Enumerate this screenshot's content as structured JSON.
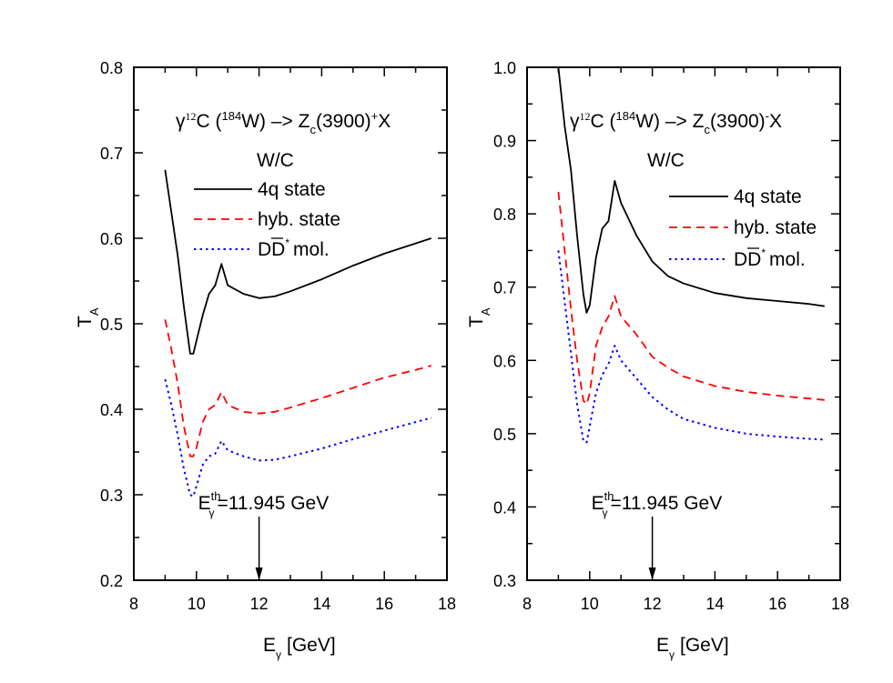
{
  "chart_data": [
    {
      "type": "line",
      "title": "γ12C (184W) -> Zc(3900)+X",
      "subtitle": "W/C",
      "xlabel": "Eγ [GeV]",
      "ylabel": "TA",
      "xlim": [
        8,
        18
      ],
      "ylim": [
        0.2,
        0.8
      ],
      "xticks": [
        "8",
        "10",
        "12",
        "14",
        "16",
        "18"
      ],
      "yticks": [
        "0.2",
        "0.3",
        "0.4",
        "0.5",
        "0.6",
        "0.7",
        "0.8"
      ],
      "annotation": {
        "text": "Eγth=11.945 GeV",
        "arrow_x": 12.0
      },
      "legend": [
        "4q state",
        "hyb. state",
        "DD̄* mol."
      ],
      "x": [
        9.0,
        9.2,
        9.4,
        9.6,
        9.8,
        9.9,
        10.0,
        10.2,
        10.4,
        10.6,
        10.8,
        11.0,
        11.5,
        12.0,
        12.5,
        13.0,
        14.0,
        15.0,
        16.0,
        17.0,
        17.5
      ],
      "series": [
        {
          "name": "4q state",
          "color": "#000000",
          "style": "solid",
          "values": [
            0.68,
            0.63,
            0.58,
            0.52,
            0.465,
            0.465,
            0.48,
            0.51,
            0.535,
            0.545,
            0.57,
            0.545,
            0.535,
            0.53,
            0.532,
            0.538,
            0.552,
            0.568,
            0.582,
            0.594,
            0.6
          ]
        },
        {
          "name": "hyb. state",
          "color": "#ff0000",
          "style": "dashed",
          "values": [
            0.505,
            0.47,
            0.43,
            0.38,
            0.345,
            0.345,
            0.355,
            0.385,
            0.4,
            0.405,
            0.42,
            0.405,
            0.397,
            0.395,
            0.397,
            0.402,
            0.413,
            0.425,
            0.437,
            0.446,
            0.451
          ]
        },
        {
          "name": "DD̄* mol.",
          "color": "#0000ff",
          "style": "dotted",
          "values": [
            0.435,
            0.405,
            0.37,
            0.33,
            0.3,
            0.298,
            0.31,
            0.335,
            0.345,
            0.348,
            0.363,
            0.352,
            0.345,
            0.34,
            0.341,
            0.345,
            0.354,
            0.365,
            0.375,
            0.385,
            0.39
          ]
        }
      ]
    },
    {
      "type": "line",
      "title": "γ12C (184W) -> Zc(3900)-X",
      "subtitle": "W/C",
      "xlabel": "Eγ [GeV]",
      "ylabel": "TA",
      "xlim": [
        8,
        18
      ],
      "ylim": [
        0.3,
        1.0
      ],
      "xticks": [
        "8",
        "10",
        "12",
        "14",
        "16",
        "18"
      ],
      "yticks": [
        "0.3",
        "0.4",
        "0.5",
        "0.6",
        "0.7",
        "0.8",
        "0.9",
        "1.0"
      ],
      "annotation": {
        "text": "Eγth=11.945 GeV",
        "arrow_x": 12.0
      },
      "legend": [
        "4q state",
        "hyb. state",
        "DD̄* mol."
      ],
      "x": [
        9.0,
        9.2,
        9.4,
        9.6,
        9.8,
        9.9,
        10.0,
        10.2,
        10.4,
        10.6,
        10.8,
        11.0,
        11.5,
        12.0,
        12.5,
        13.0,
        14.0,
        15.0,
        16.0,
        17.0,
        17.5
      ],
      "series": [
        {
          "name": "4q state",
          "color": "#000000",
          "style": "solid",
          "values": [
            1.0,
            0.92,
            0.86,
            0.77,
            0.69,
            0.665,
            0.675,
            0.74,
            0.78,
            0.79,
            0.845,
            0.815,
            0.77,
            0.735,
            0.715,
            0.705,
            0.692,
            0.685,
            0.681,
            0.677,
            0.674
          ]
        },
        {
          "name": "hyb. state",
          "color": "#ff0000",
          "style": "dashed",
          "values": [
            0.83,
            0.75,
            0.67,
            0.6,
            0.545,
            0.54,
            0.555,
            0.62,
            0.645,
            0.66,
            0.688,
            0.66,
            0.635,
            0.605,
            0.59,
            0.578,
            0.565,
            0.557,
            0.552,
            0.548,
            0.546
          ]
        },
        {
          "name": "DD̄* mol.",
          "color": "#0000ff",
          "style": "dotted",
          "values": [
            0.75,
            0.68,
            0.61,
            0.54,
            0.49,
            0.488,
            0.51,
            0.555,
            0.58,
            0.595,
            0.62,
            0.6,
            0.575,
            0.55,
            0.533,
            0.52,
            0.508,
            0.5,
            0.496,
            0.493,
            0.492
          ]
        }
      ]
    }
  ],
  "labels": {
    "left_title_main": "γ",
    "subtitle": "W/C",
    "legend_4q": "4q state",
    "legend_hyb": "hyb. state",
    "legend_mol": "mol.",
    "threshold": "=11.945 GeV",
    "xlabel": "[GeV]"
  }
}
